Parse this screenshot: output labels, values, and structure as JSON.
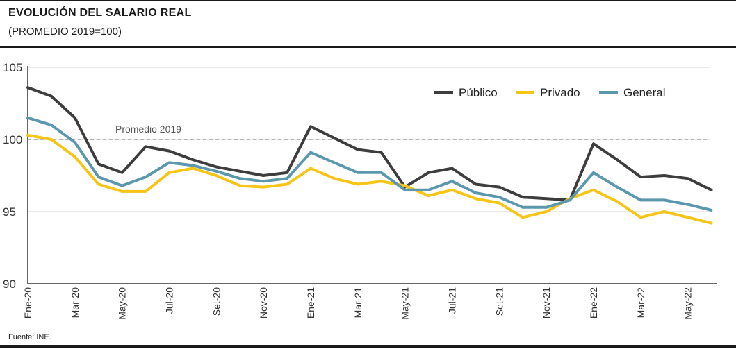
{
  "header": {
    "title": "EVOLUCIÓN DEL SALARIO REAL",
    "subtitle": "(PROMEDIO 2019=100)"
  },
  "footer": {
    "source": "Fuente: INE."
  },
  "chart_data": {
    "type": "line",
    "title": "EVOLUCIÓN DEL SALARIO REAL",
    "subtitle": "(PROMEDIO 2019=100)",
    "xlabel": "",
    "ylabel": "",
    "ylim": [
      90,
      105
    ],
    "yticks": [
      90,
      95,
      100,
      105
    ],
    "grid": true,
    "legend_position": "top-right",
    "x": [
      "Ene-20",
      "Feb-20",
      "Mar-20",
      "Abr-20",
      "May-20",
      "Jun-20",
      "Jul-20",
      "Ago-20",
      "Set-20",
      "Oct-20",
      "Nov-20",
      "Dic-20",
      "Ene-21",
      "Feb-21",
      "Mar-21",
      "Abr-21",
      "May-21",
      "Jun-21",
      "Jul-21",
      "Ago-21",
      "Set-21",
      "Oct-21",
      "Nov-21",
      "Dic-21",
      "Ene-22",
      "Feb-22",
      "Mar-22",
      "Abr-22",
      "May-22",
      "Jun-22"
    ],
    "x_tick_labels": [
      "Ene-20",
      "Mar-20",
      "May-20",
      "Jul-20",
      "Set-20",
      "Nov-20",
      "Ene-21",
      "Mar-21",
      "May-21",
      "Jul-21",
      "Set-21",
      "Nov-21",
      "Ene-22",
      "Mar-22",
      "May-22"
    ],
    "reference_line": {
      "value": 100,
      "label": "Promedio 2019",
      "color": "#888888"
    },
    "series": [
      {
        "name": "Público",
        "color": "#3d3d3d",
        "values": [
          103.6,
          103.0,
          101.5,
          98.3,
          97.7,
          99.5,
          99.2,
          98.6,
          98.1,
          97.8,
          97.5,
          97.7,
          100.9,
          100.1,
          99.3,
          99.1,
          96.7,
          97.7,
          98.0,
          96.9,
          96.7,
          96.0,
          95.9,
          95.8,
          99.7,
          98.6,
          97.4,
          97.5,
          97.3,
          96.5
        ]
      },
      {
        "name": "Privado",
        "color": "#f5c518",
        "values": [
          100.3,
          100.0,
          98.8,
          96.9,
          96.4,
          96.4,
          97.7,
          98.0,
          97.5,
          96.8,
          96.7,
          96.9,
          98.0,
          97.3,
          96.9,
          97.1,
          96.8,
          96.1,
          96.5,
          95.9,
          95.6,
          94.6,
          95.0,
          95.9,
          96.5,
          95.7,
          94.6,
          95.0,
          94.6,
          94.2
        ]
      },
      {
        "name": "General",
        "color": "#5b97ad",
        "values": [
          101.5,
          101.0,
          99.8,
          97.4,
          96.8,
          97.4,
          98.4,
          98.2,
          97.8,
          97.3,
          97.1,
          97.3,
          99.1,
          98.4,
          97.7,
          97.7,
          96.5,
          96.5,
          97.1,
          96.3,
          96.0,
          95.3,
          95.3,
          95.8,
          97.7,
          96.7,
          95.8,
          95.8,
          95.5,
          95.1
        ]
      }
    ]
  }
}
